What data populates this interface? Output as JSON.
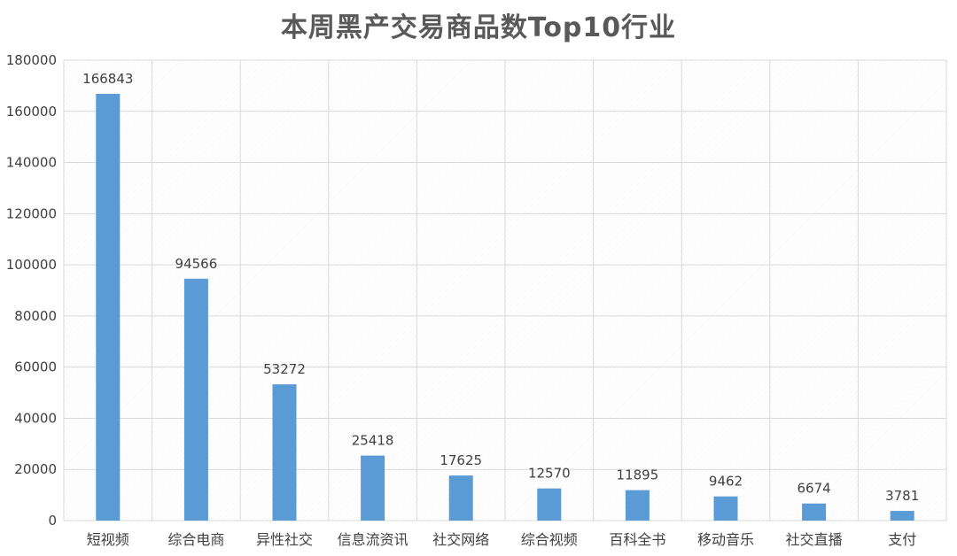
{
  "chart_data": {
    "type": "bar",
    "title": "本周黑产交易商品数Top10行业",
    "categories": [
      "短视频",
      "综合电商",
      "异性社交",
      "信息流资讯",
      "社交网络",
      "综合视频",
      "百科全书",
      "移动音乐",
      "社交直播",
      "支付"
    ],
    "values": [
      166843,
      94566,
      53272,
      25418,
      17625,
      12570,
      11895,
      9462,
      6674,
      3781
    ],
    "data_labels": [
      "166843",
      "94566",
      "53272",
      "25418",
      "17625",
      "12570",
      "11895",
      "9462",
      "6674",
      "3781"
    ],
    "y_ticks": [
      0,
      20000,
      40000,
      60000,
      80000,
      100000,
      120000,
      140000,
      160000,
      180000
    ],
    "y_tick_labels": [
      "0",
      "20000",
      "40000",
      "60000",
      "80000",
      "100000",
      "120000",
      "140000",
      "160000",
      "180000"
    ],
    "ylim": [
      0,
      180000
    ],
    "grid": true,
    "xlabel": "",
    "ylabel": "",
    "colors": {
      "bar": "#5b9bd5",
      "grid": "#d9d9d9",
      "text": "#404040",
      "title": "#595959"
    }
  }
}
